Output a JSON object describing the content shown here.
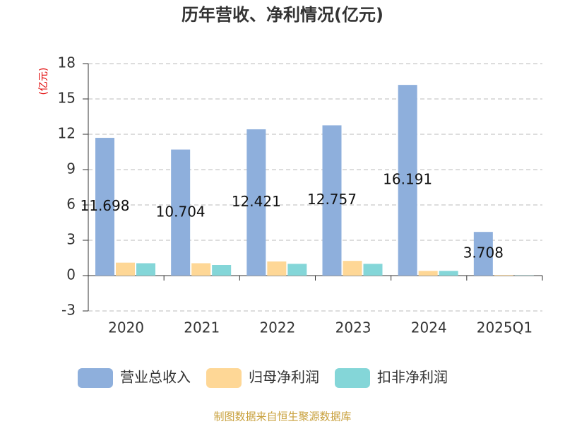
{
  "chart_data": {
    "type": "bar",
    "title": "历年营收、净利情况(亿元)",
    "y_label": "(亿元)",
    "categories": [
      "2020",
      "2021",
      "2022",
      "2023",
      "2024",
      "2025Q1"
    ],
    "series": [
      {
        "name": "营业总收入",
        "color": "#8eafdc",
        "values": [
          11.698,
          10.704,
          12.421,
          12.757,
          16.191,
          3.708
        ]
      },
      {
        "name": "归母净利润",
        "color": "#fed796",
        "values": [
          1.1,
          1.05,
          1.2,
          1.25,
          0.4,
          0.05
        ]
      },
      {
        "name": "扣非净利润",
        "color": "#84d6d8",
        "values": [
          1.05,
          0.9,
          1.0,
          1.0,
          0.4,
          0.02
        ]
      }
    ],
    "ylim": [
      -3,
      18
    ],
    "yticks": [
      -3,
      0,
      3,
      6,
      9,
      12,
      15,
      18
    ],
    "grid": true,
    "source": "制图数据来自恒生聚源数据库"
  }
}
